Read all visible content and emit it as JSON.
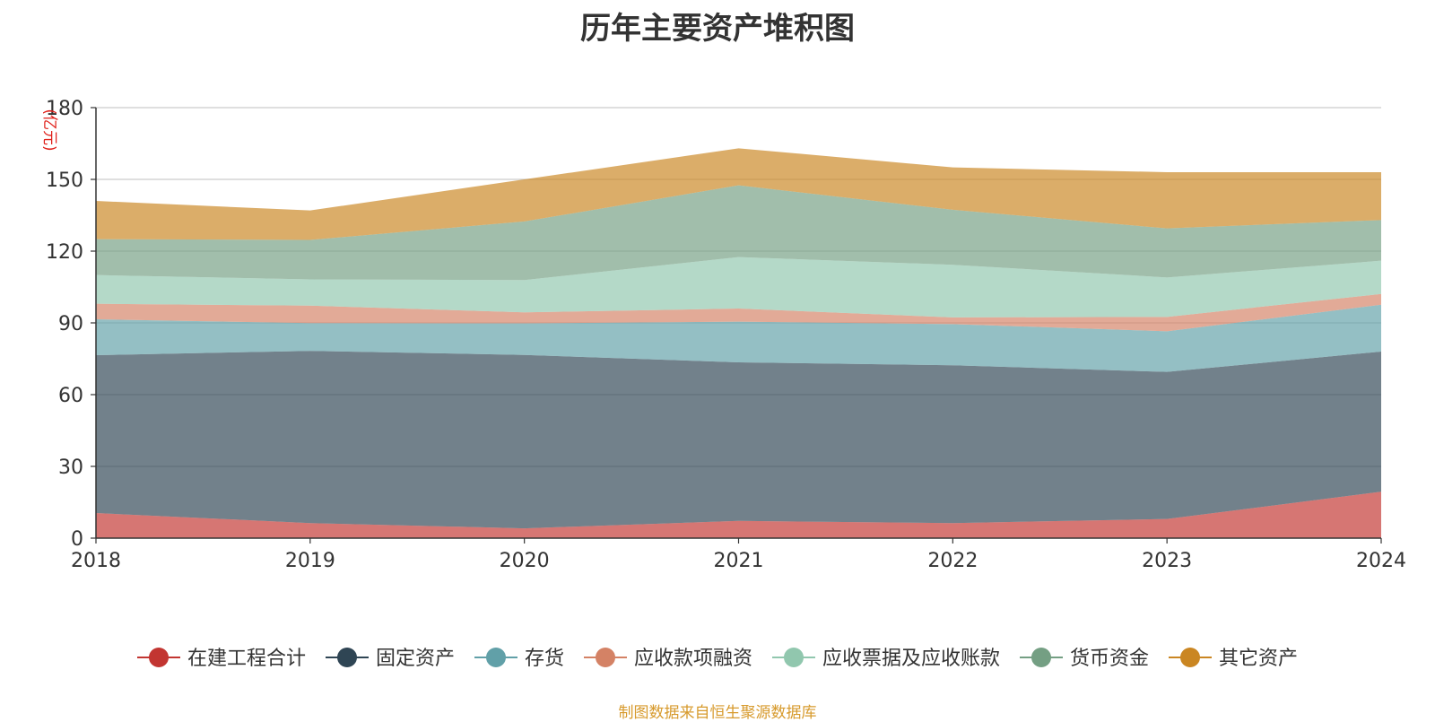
{
  "chart_data": {
    "type": "area",
    "stacked": true,
    "title": "历年主要资产堆积图",
    "unit_label": "(亿元)",
    "x": [
      "2018",
      "2019",
      "2020",
      "2021",
      "2022",
      "2023",
      "2024"
    ],
    "ylim": [
      0,
      180
    ],
    "yticks": [
      0,
      30,
      60,
      90,
      120,
      150,
      180
    ],
    "grid": true,
    "legend_position": "bottom",
    "series": [
      {
        "name": "在建工程合计",
        "color": "#c23531",
        "values": [
          10.5,
          6.3,
          4.1,
          7.2,
          6.3,
          8.0,
          19.4
        ]
      },
      {
        "name": "固定资产",
        "color": "#2f4554",
        "values": [
          66.0,
          72.0,
          72.5,
          66.3,
          66.0,
          61.5,
          58.6
        ]
      },
      {
        "name": "存货",
        "color": "#61a0a8",
        "values": [
          15.0,
          11.6,
          13.2,
          17.0,
          17.2,
          17.0,
          19.6
        ]
      },
      {
        "name": "应收款项融资",
        "color": "#d48265",
        "values": [
          6.5,
          7.3,
          4.6,
          5.5,
          2.8,
          6.0,
          4.5
        ]
      },
      {
        "name": "应收票据及应收账款",
        "color": "#91c7ae",
        "values": [
          12.0,
          11.0,
          13.5,
          21.5,
          22.0,
          16.5,
          13.9
        ]
      },
      {
        "name": "货币资金",
        "color": "#749f83",
        "values": [
          15.0,
          16.5,
          24.5,
          30.0,
          23.0,
          20.5,
          17.0
        ]
      },
      {
        "name": "其它资产",
        "color": "#ca8622",
        "values": [
          16.0,
          12.3,
          17.6,
          15.5,
          17.7,
          23.5,
          20.0
        ]
      }
    ]
  },
  "source_note": "制图数据来自恒生聚源数据库"
}
